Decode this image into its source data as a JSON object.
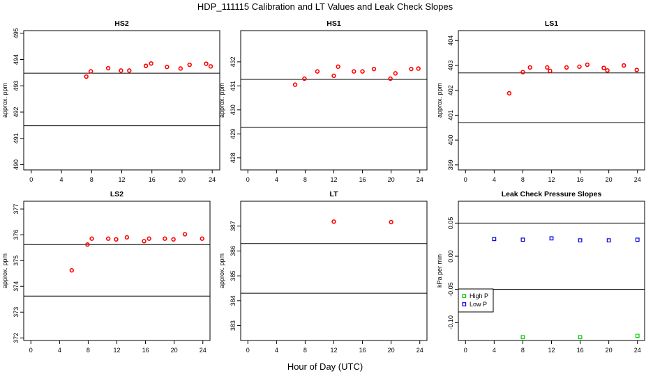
{
  "figure": {
    "title": "HDP_111115  Calibration and LT Values and Leak Check Slopes",
    "xlabel": "Hour of Day (UTC)"
  },
  "chart_data": [
    {
      "id": "hs2",
      "type": "scatter",
      "title": "HS2",
      "ylabel": "approx. ppm",
      "xlim": [
        -1,
        25
      ],
      "ylim": [
        489.8,
        495.1
      ],
      "xticks": [
        0,
        4,
        8,
        12,
        16,
        20,
        24
      ],
      "yticks": [
        490,
        491,
        492,
        493,
        494,
        495
      ],
      "hlines": [
        493.48,
        491.48
      ],
      "series": [
        {
          "name": "values",
          "color": "#ff0000",
          "x": [
            7.3,
            7.9,
            10.2,
            11.9,
            13.0,
            15.2,
            15.9,
            18.0,
            19.8,
            21.0,
            23.2,
            23.8
          ],
          "y": [
            493.35,
            493.55,
            493.67,
            493.58,
            493.58,
            493.76,
            493.85,
            493.72,
            493.66,
            493.8,
            493.84,
            493.74
          ]
        }
      ]
    },
    {
      "id": "hs1",
      "type": "scatter",
      "title": "HS1",
      "ylabel": "approx. ppm",
      "xlim": [
        -1,
        25
      ],
      "ylim": [
        427.5,
        433.3
      ],
      "xticks": [
        0,
        4,
        8,
        12,
        16,
        20,
        24
      ],
      "yticks": [
        428,
        429,
        430,
        431,
        432
      ],
      "hlines": [
        431.27,
        429.27
      ],
      "series": [
        {
          "name": "values",
          "color": "#ff0000",
          "x": [
            6.6,
            7.9,
            9.7,
            12.0,
            12.6,
            14.8,
            16.0,
            17.6,
            19.9,
            20.6,
            22.8,
            23.8
          ],
          "y": [
            431.05,
            431.3,
            431.6,
            431.42,
            431.8,
            431.6,
            431.6,
            431.7,
            431.3,
            431.52,
            431.7,
            431.72
          ]
        }
      ]
    },
    {
      "id": "ls1",
      "type": "scatter",
      "title": "LS1",
      "ylabel": "approx. ppm",
      "xlim": [
        -1,
        25
      ],
      "ylim": [
        398.8,
        404.4
      ],
      "xticks": [
        0,
        4,
        8,
        12,
        16,
        20,
        24
      ],
      "yticks": [
        399,
        400,
        401,
        402,
        403,
        404
      ],
      "hlines": [
        402.7,
        400.7
      ],
      "series": [
        {
          "name": "values",
          "color": "#ff0000",
          "x": [
            6.1,
            8.0,
            9.0,
            11.4,
            11.8,
            14.1,
            15.9,
            17.0,
            19.3,
            19.8,
            22.1,
            23.9
          ],
          "y": [
            401.88,
            402.73,
            402.92,
            402.92,
            402.78,
            402.92,
            402.95,
            403.03,
            402.9,
            402.8,
            403.0,
            402.82
          ]
        }
      ]
    },
    {
      "id": "ls2",
      "type": "scatter",
      "title": "LS2",
      "ylabel": "approx. ppm",
      "xlim": [
        -1,
        25
      ],
      "ylim": [
        371.9,
        377.3
      ],
      "xticks": [
        0,
        4,
        8,
        12,
        16,
        20,
        24
      ],
      "yticks": [
        372,
        373,
        374,
        375,
        376,
        377
      ],
      "hlines": [
        375.62,
        373.62
      ],
      "series": [
        {
          "name": "values",
          "color": "#ff0000",
          "x": [
            5.7,
            7.9,
            8.5,
            10.8,
            11.9,
            13.4,
            15.8,
            16.5,
            18.7,
            19.9,
            21.5,
            23.9
          ],
          "y": [
            374.62,
            375.62,
            375.85,
            375.85,
            375.82,
            375.9,
            375.75,
            375.85,
            375.85,
            375.82,
            376.02,
            375.85
          ]
        }
      ]
    },
    {
      "id": "lt",
      "type": "scatter",
      "title": "LT",
      "ylabel": "approx. ppm",
      "xlim": [
        -1,
        25
      ],
      "ylim": [
        382.4,
        388.0
      ],
      "xticks": [
        0,
        4,
        8,
        12,
        16,
        20,
        24
      ],
      "yticks": [
        383,
        384,
        385,
        386,
        387
      ],
      "hlines": [
        386.3,
        384.3
      ],
      "series": [
        {
          "name": "values",
          "color": "#ff0000",
          "x": [
            12.0,
            20.0
          ],
          "y": [
            387.18,
            387.16
          ]
        }
      ]
    },
    {
      "id": "leak",
      "type": "scatter",
      "title": "Leak Check Pressure Slopes",
      "ylabel": "kPa per min",
      "xlim": [
        -1,
        25
      ],
      "ylim": [
        -0.127,
        0.083
      ],
      "xticks": [
        0,
        4,
        8,
        12,
        16,
        20,
        24
      ],
      "yticks": [
        -0.1,
        -0.05,
        0.0,
        0.05
      ],
      "ytick_labels": [
        "-0.10",
        "-0.05",
        "0.00",
        "0.05"
      ],
      "hlines": [
        0.05,
        -0.05
      ],
      "legend": {
        "position": "left",
        "entries": [
          "High P",
          "Low P"
        ]
      },
      "series": [
        {
          "name": "High P",
          "color": "#00cc00",
          "marker": "square",
          "x": [
            8.0,
            16.0,
            24.0
          ],
          "y": [
            -0.122,
            -0.122,
            -0.12
          ]
        },
        {
          "name": "Low P",
          "color": "#0000dd",
          "marker": "square",
          "x": [
            4.0,
            8.0,
            12.0,
            16.0,
            20.0,
            24.0
          ],
          "y": [
            0.026,
            0.025,
            0.027,
            0.024,
            0.024,
            0.025
          ]
        }
      ]
    }
  ]
}
